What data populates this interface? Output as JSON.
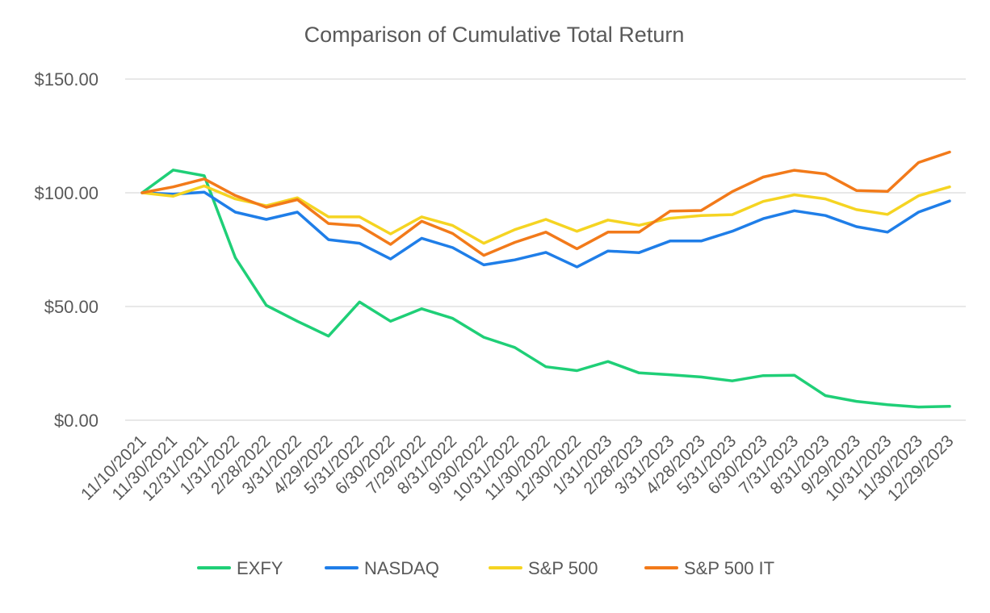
{
  "chart_data": {
    "type": "line",
    "title": "Comparison of Cumulative Total Return",
    "xlabel": "",
    "ylabel": "",
    "ylim": [
      0,
      150
    ],
    "yticks": [
      0,
      50,
      100,
      150
    ],
    "ytick_labels": [
      "$0.00",
      "$50.00",
      "$100.00",
      "$150.00"
    ],
    "grid": true,
    "legend_position": "bottom",
    "categories": [
      "11/10/2021",
      "11/30/2021",
      "12/31/2021",
      "1/31/2022",
      "2/28/2022",
      "3/31/2022",
      "4/29/2022",
      "5/31/2022",
      "6/30/2022",
      "7/29/2022",
      "8/31/2022",
      "9/30/2022",
      "10/31/2022",
      "11/30/2022",
      "12/30/2022",
      "1/31/2023",
      "2/28/2023",
      "3/31/2023",
      "4/28/2023",
      "5/31/2023",
      "6/30/2023",
      "7/31/2023",
      "8/31/2023",
      "9/29/2023",
      "10/31/2023",
      "11/30/2023",
      "12/29/2023"
    ],
    "series": [
      {
        "name": "EXFY",
        "color": "#1fcf77",
        "values": [
          100,
          110,
          107.5,
          71.5,
          50.5,
          43.5,
          37,
          52,
          43.5,
          49,
          44.8,
          36.5,
          32,
          23.5,
          21.8,
          25.8,
          20.8,
          20,
          19,
          17.3,
          19.6,
          19.8,
          10.8,
          8.3,
          6.8,
          5.8,
          6.1
        ]
      },
      {
        "name": "NASDAQ",
        "color": "#1f7ee8",
        "values": [
          100,
          99.4,
          100.3,
          91.5,
          88.3,
          91.5,
          79.4,
          77.8,
          70.9,
          80,
          75.9,
          68.3,
          70.5,
          73.8,
          67.4,
          74.4,
          73.7,
          78.8,
          78.8,
          83.1,
          88.6,
          92.1,
          90,
          85.1,
          82.7,
          91.5,
          96.4
        ]
      },
      {
        "name": "S&P 500",
        "color": "#f5d422",
        "values": [
          100,
          98.5,
          103,
          97.3,
          94.3,
          97.8,
          89.4,
          89.4,
          81.9,
          89.4,
          85.6,
          77.8,
          83.8,
          88.3,
          83.1,
          88,
          85.7,
          88.8,
          90,
          90.4,
          96.2,
          99.1,
          97.3,
          92.6,
          90.5,
          98.7,
          102.6
        ]
      },
      {
        "name": "S&P 500 IT",
        "color": "#f27a1a",
        "values": [
          100,
          102.6,
          106.1,
          98.8,
          93.6,
          97,
          86.5,
          85.5,
          77.3,
          87.5,
          82.1,
          72.5,
          78.2,
          82.7,
          75.4,
          82.7,
          82.7,
          91.9,
          92.2,
          100.5,
          106.9,
          109.9,
          108.3,
          101,
          100.6,
          113.3,
          117.9
        ]
      }
    ]
  }
}
